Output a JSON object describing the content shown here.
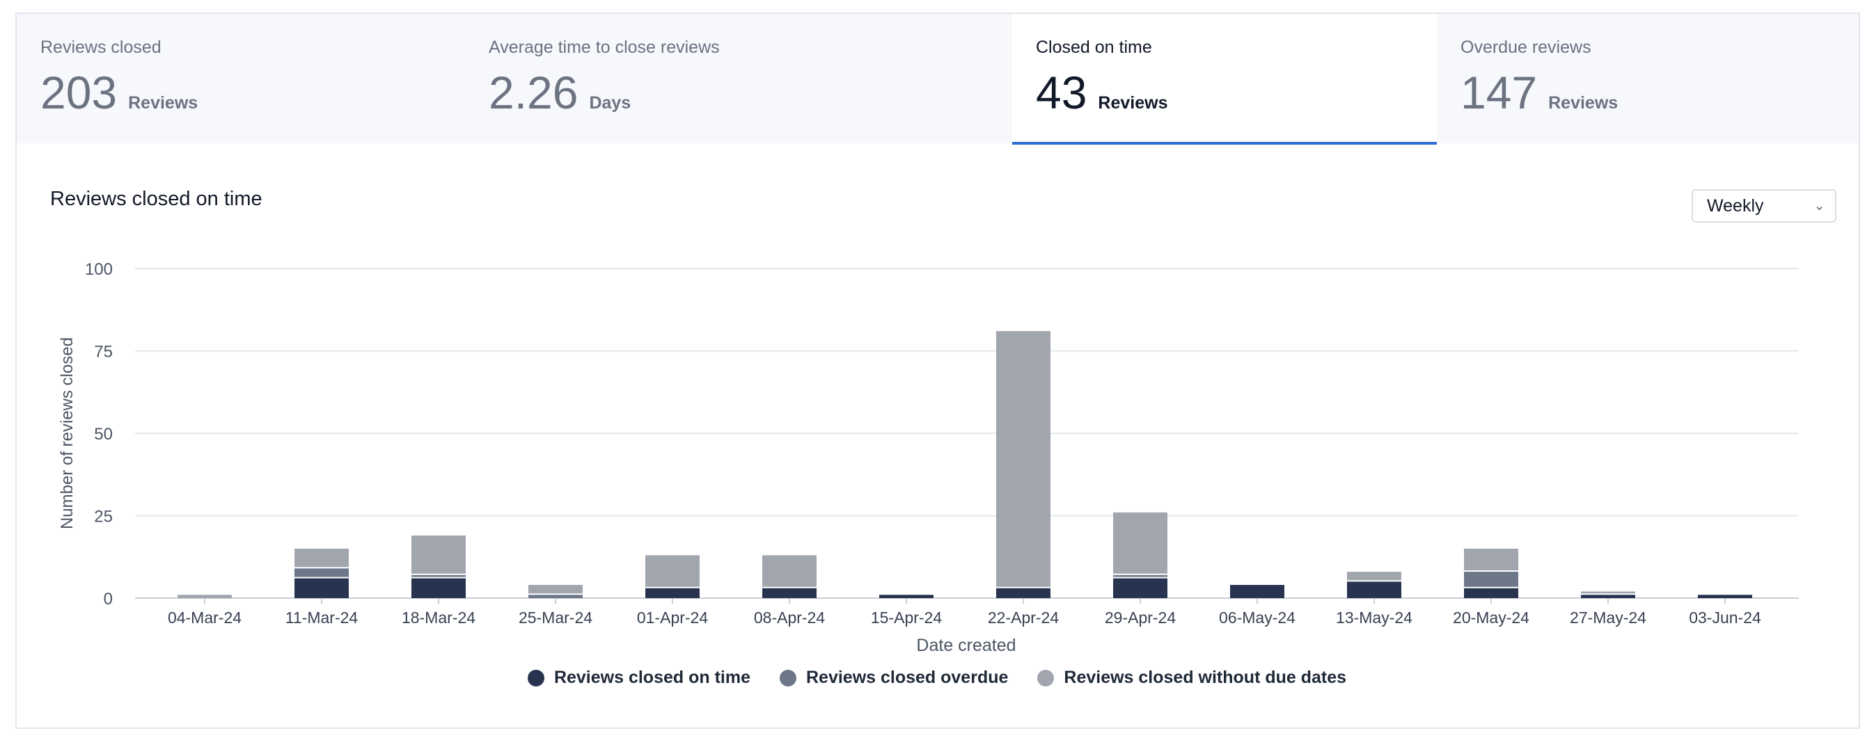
{
  "kpis": [
    {
      "label": "Reviews closed",
      "value": "203",
      "unit": "Reviews",
      "active": false
    },
    {
      "label": "Average time to close reviews",
      "value": "2.26",
      "unit": "Days",
      "active": false
    },
    {
      "label": "Closed on time",
      "value": "43",
      "unit": "Reviews",
      "active": true
    },
    {
      "label": "Overdue reviews",
      "value": "147",
      "unit": "Reviews",
      "active": false
    }
  ],
  "chart_title": "Reviews closed on time",
  "period_select": {
    "value": "Weekly",
    "icon": "chevron-down-icon"
  },
  "chart_data": {
    "type": "bar",
    "stacked": true,
    "title": "Reviews closed on time",
    "xlabel": "Date created",
    "ylabel": "Number of reviews closed",
    "ylim": [
      0,
      100
    ],
    "yticks": [
      0,
      25,
      50,
      75,
      100
    ],
    "grid": true,
    "legend_position": "bottom",
    "categories": [
      "04-Mar-24",
      "11-Mar-24",
      "18-Mar-24",
      "25-Mar-24",
      "01-Apr-24",
      "08-Apr-24",
      "15-Apr-24",
      "22-Apr-24",
      "29-Apr-24",
      "06-May-24",
      "13-May-24",
      "20-May-24",
      "27-May-24",
      "03-Jun-24"
    ],
    "series": [
      {
        "name": "Reviews closed on time",
        "color": "#283350",
        "values": [
          0,
          6,
          6,
          0,
          3,
          3,
          1,
          3,
          6,
          4,
          5,
          3,
          1,
          1
        ]
      },
      {
        "name": "Reviews closed overdue",
        "color": "#6e7789",
        "values": [
          0,
          3,
          1,
          1,
          0,
          0,
          0,
          0,
          1,
          0,
          0,
          5,
          0,
          0
        ]
      },
      {
        "name": "Reviews closed without due dates",
        "color": "#a0a5ae",
        "values": [
          1,
          6,
          12,
          3,
          10,
          10,
          0,
          78,
          19,
          0,
          3,
          7,
          1,
          0
        ]
      }
    ]
  }
}
